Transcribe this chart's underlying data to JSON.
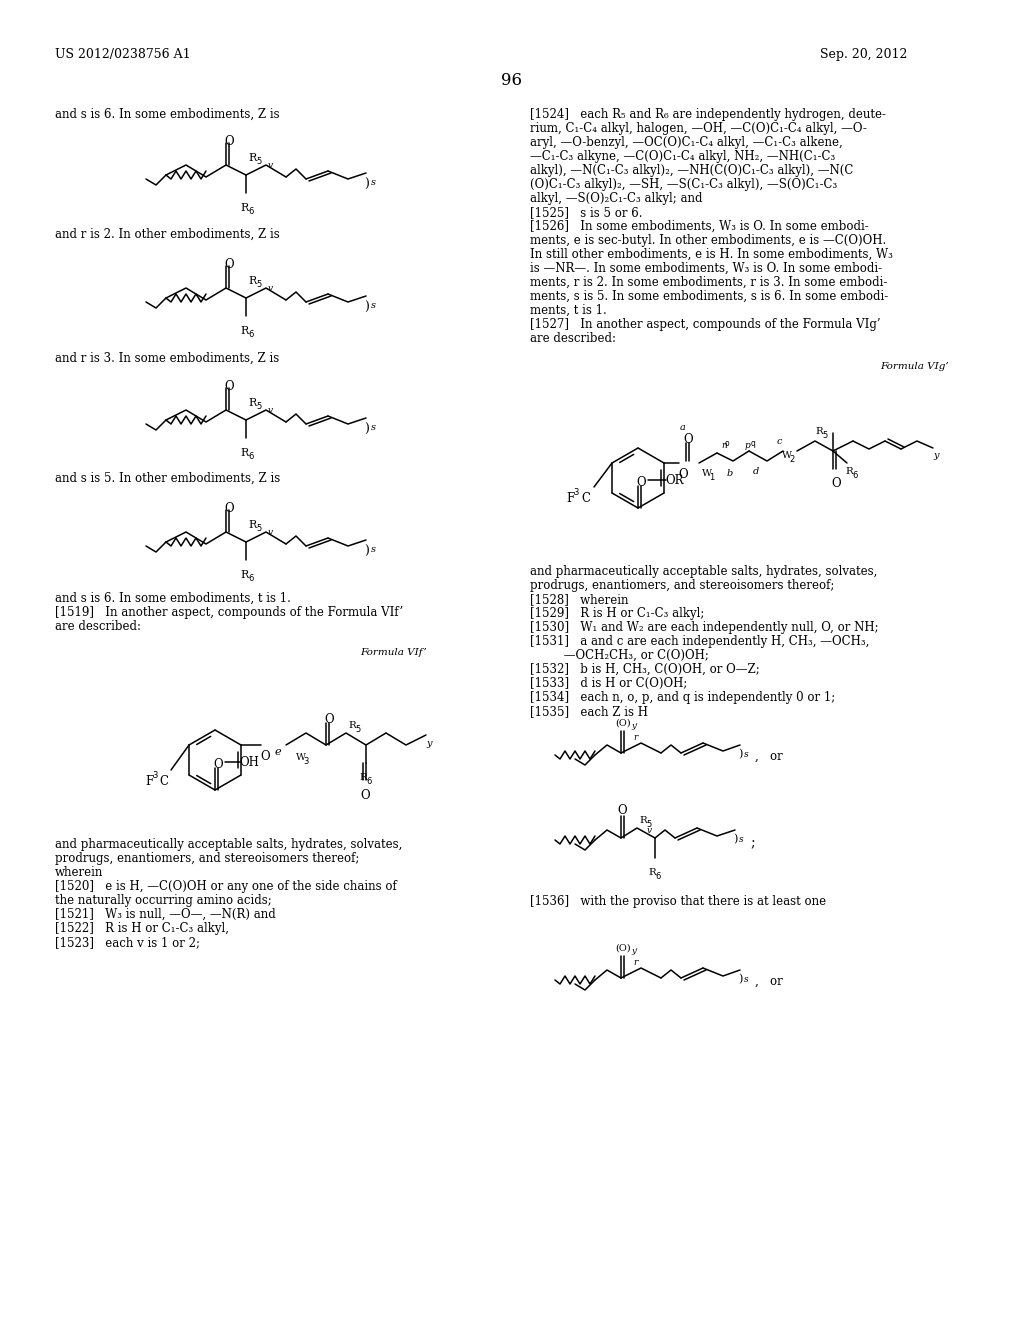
{
  "page_number": "96",
  "patent_number": "US 2012/0238756 A1",
  "patent_date": "Sep. 20, 2012",
  "background_color": "#ffffff",
  "text_color": "#000000"
}
